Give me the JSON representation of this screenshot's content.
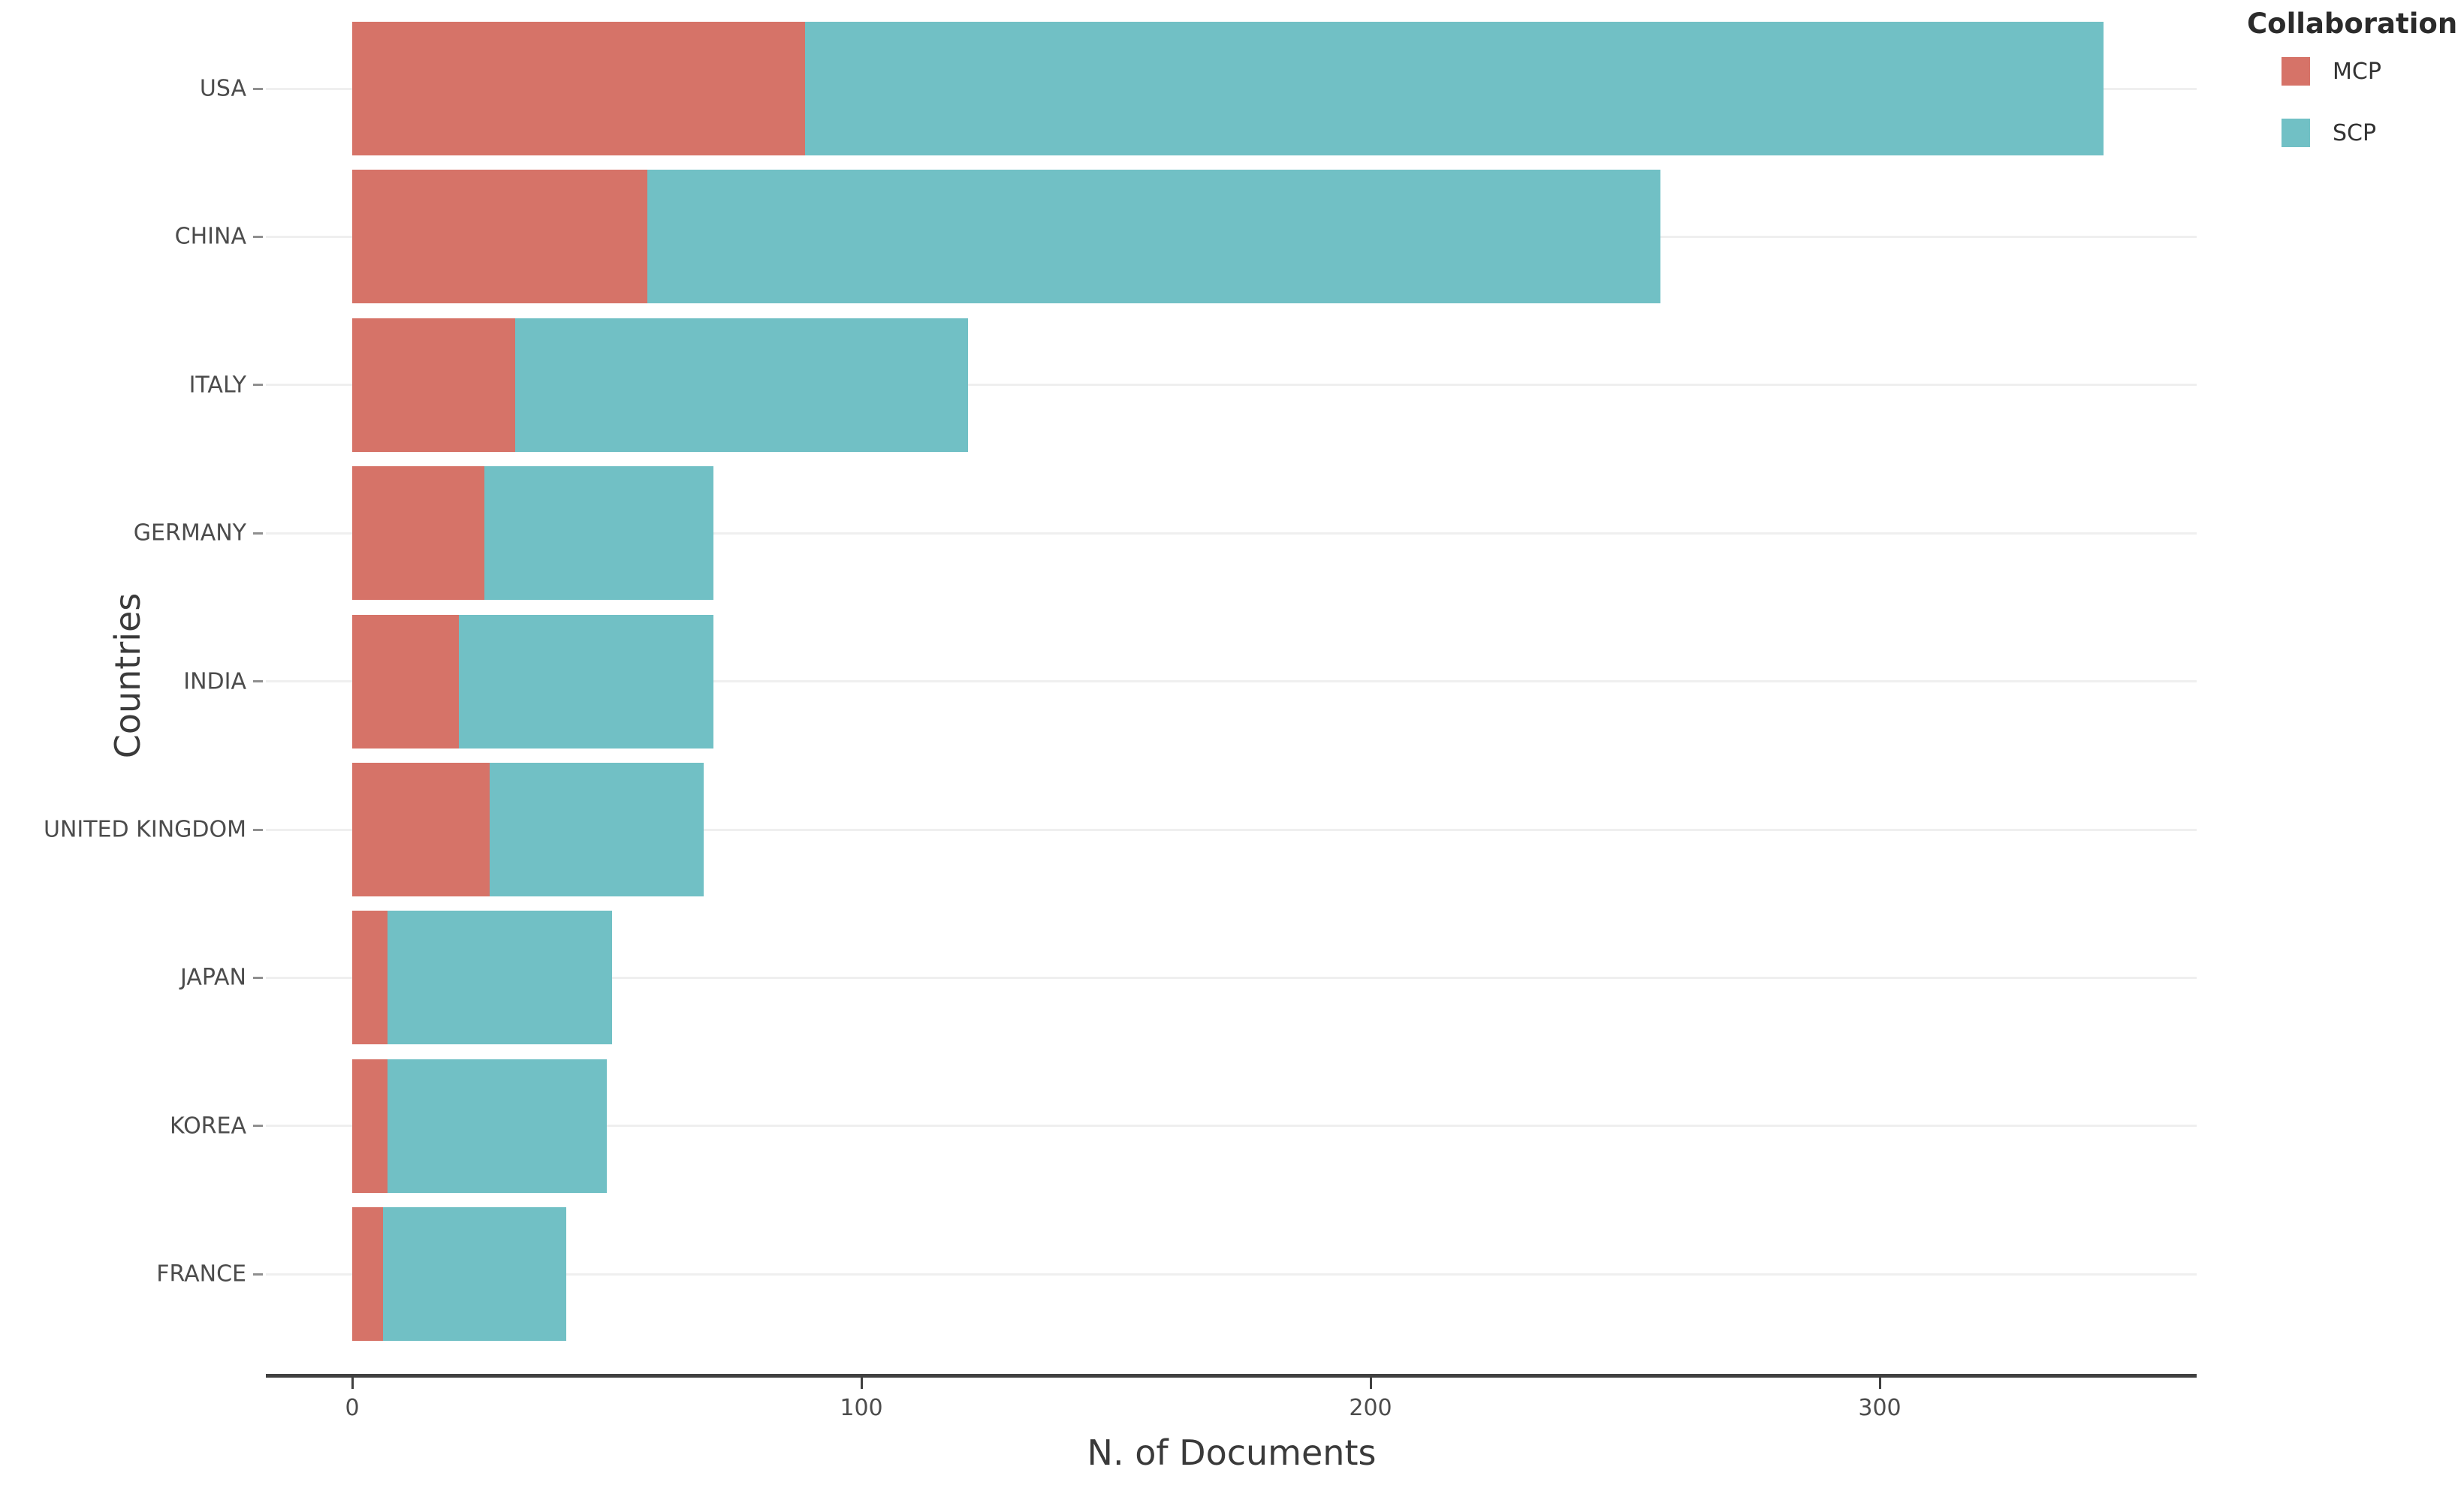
{
  "chart_data": {
    "type": "bar",
    "orientation": "horizontal",
    "stacked": true,
    "title": "",
    "xlabel": "N. of Documents",
    "ylabel": "Countries",
    "categories": [
      "USA",
      "CHINA",
      "ITALY",
      "GERMANY",
      "INDIA",
      "UNITED KINGDOM",
      "JAPAN",
      "KOREA",
      "FRANCE"
    ],
    "series": [
      {
        "name": "MCP",
        "color": "#D67368",
        "values": [
          89,
          58,
          32,
          26,
          21,
          27,
          7,
          7,
          6
        ]
      },
      {
        "name": "SCP",
        "color": "#71C0C5",
        "values": [
          255,
          199,
          89,
          45,
          50,
          42,
          44,
          43,
          36
        ]
      }
    ],
    "totals": [
      344,
      257,
      121,
      71,
      71,
      69,
      51,
      50,
      42
    ],
    "x_ticks": [
      0,
      100,
      200,
      300
    ],
    "x_tick_labels": [
      "0",
      "100",
      "200",
      "300"
    ],
    "xlim": [
      -17,
      362
    ],
    "grid": "horizontal-only",
    "legend": {
      "title": "Collaboration",
      "position": "top-right"
    }
  },
  "legend": {
    "title": "Collaboration",
    "items": [
      {
        "label": "MCP",
        "color": "#D67368"
      },
      {
        "label": "SCP",
        "color": "#71C0C5"
      }
    ]
  },
  "colors": {
    "mcp": "#D67368",
    "scp": "#71C0C5",
    "axis_line": "#404040",
    "tick_text": "#4c4c4c",
    "label_text": "#4c4c4c",
    "title_text": "#3a3a3a",
    "gridline": "#efefef",
    "background": "#ffffff"
  }
}
